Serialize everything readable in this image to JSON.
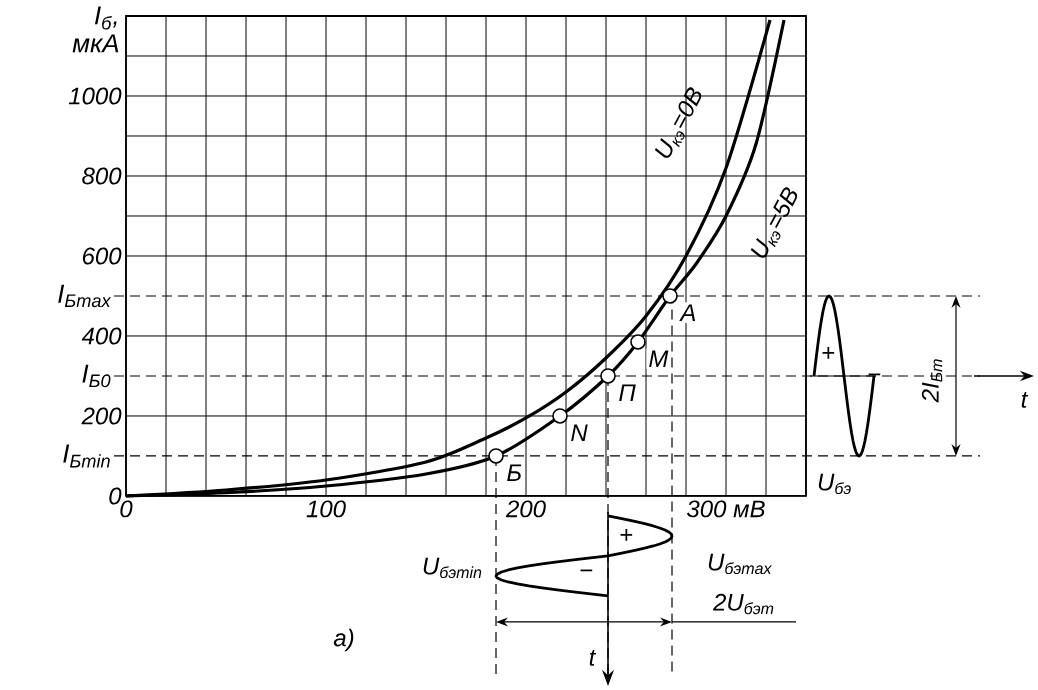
{
  "chart_data": {
    "type": "line",
    "ylabel": "I$_{б}$, мкА",
    "xlabel": "U$_{бэ}$",
    "xlim": [
      0,
      340
    ],
    "ylim": [
      0,
      1200
    ],
    "xticks": [
      0,
      {
        "value": 20,
        "label": null
      },
      {
        "value": 40,
        "label": null
      },
      {
        "value": 60,
        "label": null
      },
      {
        "value": 80,
        "label": null
      },
      100,
      {
        "value": 120,
        "label": null
      },
      {
        "value": 140,
        "label": null
      },
      {
        "value": 160,
        "label": null
      },
      {
        "value": 180,
        "label": null
      },
      200,
      {
        "value": 220,
        "label": null
      },
      {
        "value": 240,
        "label": null
      },
      {
        "value": 260,
        "label": null
      },
      {
        "value": 280,
        "label": null
      },
      {
        "value": 300,
        "label": "300 мВ"
      },
      {
        "value": 320,
        "label": null
      },
      {
        "value": 340,
        "label": null
      }
    ],
    "yticks": [
      0,
      200,
      400,
      600,
      {
        "value": 700,
        "label": null
      },
      800,
      {
        "value": 900,
        "label": null
      },
      1000,
      {
        "value": 1100,
        "label": null
      },
      {
        "value": 1200,
        "label": null
      }
    ],
    "grid": true,
    "marker": "none",
    "line_style": "solid",
    "series": [
      {
        "name": "U$_{кэ}$=0В",
        "color": "#000000",
        "x": [
          0,
          50,
          100,
          150,
          180,
          200,
          220,
          240,
          260,
          280,
          300,
          322
        ],
        "values": [
          0,
          15,
          40,
          85,
          145,
          195,
          260,
          345,
          450,
          600,
          820,
          1190
        ]
      },
      {
        "name": "U$_{кэ}$=5В",
        "color": "#000000",
        "x": [
          0,
          50,
          100,
          150,
          185,
          217,
          241,
          256,
          272,
          285,
          300,
          315,
          329
        ],
        "values": [
          0,
          8,
          25,
          55,
          100,
          200,
          300,
          385,
          500,
          580,
          700,
          880,
          1190
        ]
      }
    ],
    "ref_lines": [
      {
        "axis": "y",
        "value": 500,
        "label": "I$_{Бmax}$",
        "line_style": "dashed"
      },
      {
        "axis": "y",
        "value": 300,
        "label": "I$_{Б0}$",
        "line_style": "dashed"
      },
      {
        "axis": "y",
        "value": 100,
        "label": "I$_{Бmin}$",
        "line_style": "dashed"
      },
      {
        "axis": "x",
        "value": 185,
        "label": "U$_{бэmin}$",
        "line_style": "dashed"
      },
      {
        "axis": "x",
        "value": 241,
        "line_style": "dashed"
      },
      {
        "axis": "x",
        "value": 273,
        "label": "U$_{бэmax}$",
        "line_style": "dashed"
      }
    ],
    "annotations": [
      {
        "text": "А",
        "x": 272,
        "y": 500
      },
      {
        "text": "М",
        "x": 256,
        "y": 385
      },
      {
        "text": "П",
        "x": 241,
        "y": 300
      },
      {
        "text": "N",
        "x": 217,
        "y": 200
      },
      {
        "text": "Б",
        "x": 185,
        "y": 100
      },
      "+",
      "−",
      "2I$_{Бm}$",
      "t",
      "+",
      "−",
      "2U$_{бэm}$",
      "t",
      "а)"
    ]
  }
}
